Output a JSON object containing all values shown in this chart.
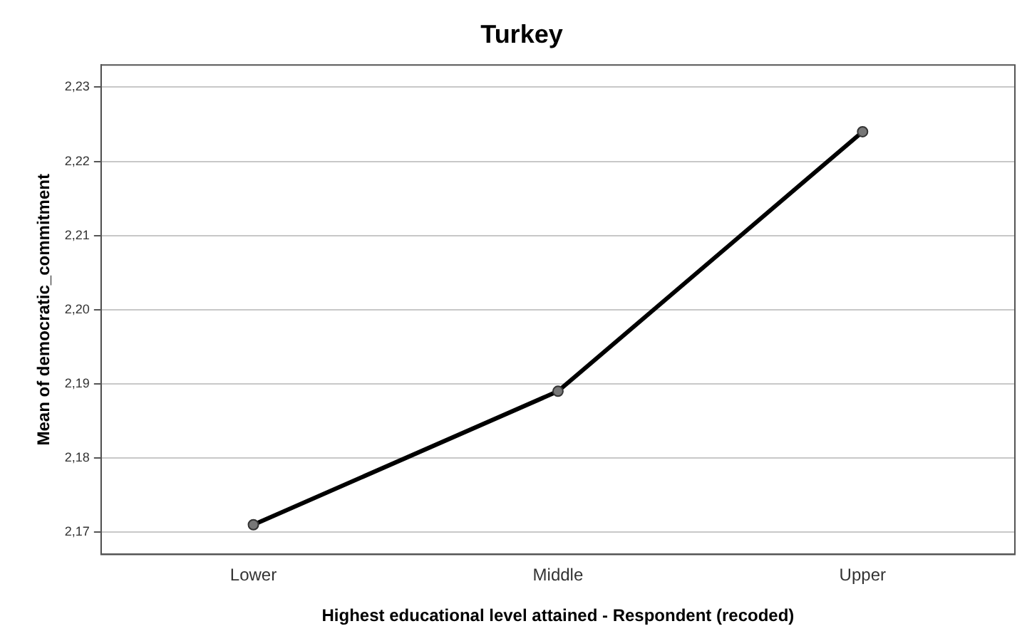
{
  "chart_data": {
    "type": "line",
    "title": "Turkey",
    "xlabel": "Highest educational level attained - Respondent (recoded)",
    "ylabel": "Mean of democratic_commitment",
    "categories": [
      "Lower",
      "Middle",
      "Upper"
    ],
    "series": [
      {
        "color": "#000000",
        "values": [
          2.171,
          2.189,
          2.224
        ]
      }
    ],
    "ylim": [
      2.167,
      2.233
    ],
    "yticks": [
      {
        "value": 2.17,
        "label": "2,17"
      },
      {
        "value": 2.18,
        "label": "2,18"
      },
      {
        "value": 2.19,
        "label": "2,19"
      },
      {
        "value": 2.2,
        "label": "2,20"
      },
      {
        "value": 2.21,
        "label": "2,21"
      },
      {
        "value": 2.22,
        "label": "2,22"
      },
      {
        "value": 2.23,
        "label": "2,23"
      }
    ],
    "grid": "y",
    "legend": false,
    "marker": "circle",
    "line_style": "solid"
  }
}
